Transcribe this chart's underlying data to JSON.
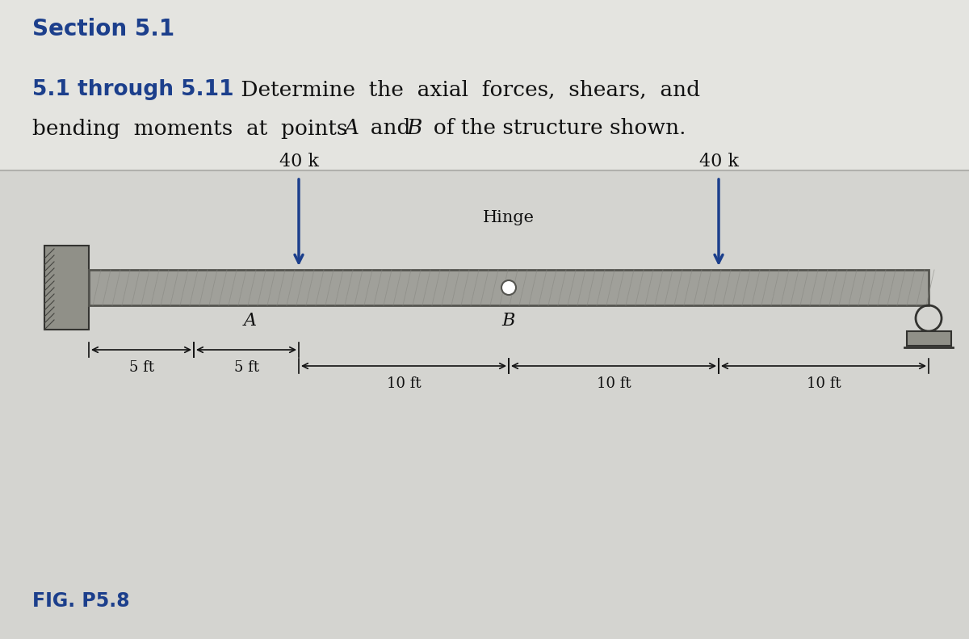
{
  "bg_top_color": "#e8e8e4",
  "bg_bottom_color": "#d8d8d4",
  "text_blue": "#1c3f8c",
  "text_black": "#111111",
  "fig_label": "FIG. P5.8",
  "load_label": "40 k",
  "hinge_label": "Hinge",
  "point_A": "A",
  "point_B": "B",
  "beam_gray": "#a0a09a",
  "beam_dark": "#555550",
  "beam_stripe": "#888882",
  "wall_gray": "#909088",
  "roller_gray": "#909088",
  "arrow_blue": "#1c3f8c",
  "dim_black": "#111111"
}
